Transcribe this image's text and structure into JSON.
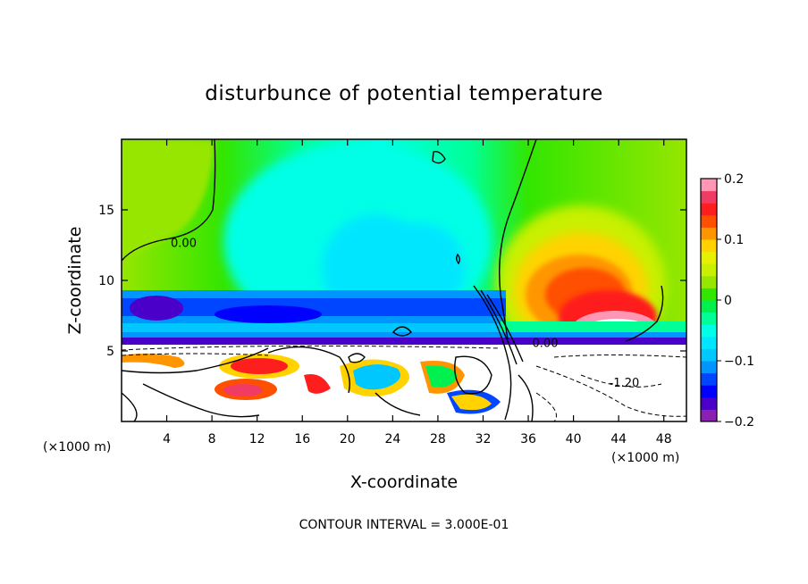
{
  "chart_data": {
    "type": "heatmap",
    "title": "disturbunce of potential temperature",
    "xlabel": "X-coordinate",
    "ylabel": "Z-coordinate",
    "x_unit_label": "(×1000 m)",
    "xlim": [
      0,
      50
    ],
    "ylim": [
      0,
      20
    ],
    "x_ticks": [
      4,
      8,
      12,
      16,
      20,
      24,
      28,
      32,
      36,
      40,
      44,
      48
    ],
    "y_ticks": [
      5,
      10,
      15
    ],
    "colorbar": {
      "ticks": [
        0.2,
        0.1,
        0,
        -0.1,
        -0.2
      ],
      "tick_labels": [
        "0.2",
        "0.1",
        "0",
        "−0.1",
        "−0.2"
      ],
      "range": [
        -0.2,
        0.2
      ],
      "colors": [
        "#8a1fb0",
        "#4a00c8",
        "#0000ff",
        "#0045ff",
        "#0096ff",
        "#00c8ff",
        "#00e6ff",
        "#00ffe6",
        "#00ff96",
        "#00f050",
        "#32e600",
        "#96e600",
        "#c8f000",
        "#e6f000",
        "#ffd200",
        "#ff9600",
        "#ff5000",
        "#ff1e1e",
        "#f03c64",
        "#ff96b4"
      ]
    },
    "contour_labels": [
      {
        "text": "0.00",
        "x": 5.5,
        "z": 12.7
      },
      {
        "text": "0.00",
        "x": 37.5,
        "z": 5.6
      },
      {
        "text": "-1.20",
        "x": 44.5,
        "z": 2.8
      }
    ],
    "footer": "CONTOUR INTERVAL = 3.000E-01"
  }
}
